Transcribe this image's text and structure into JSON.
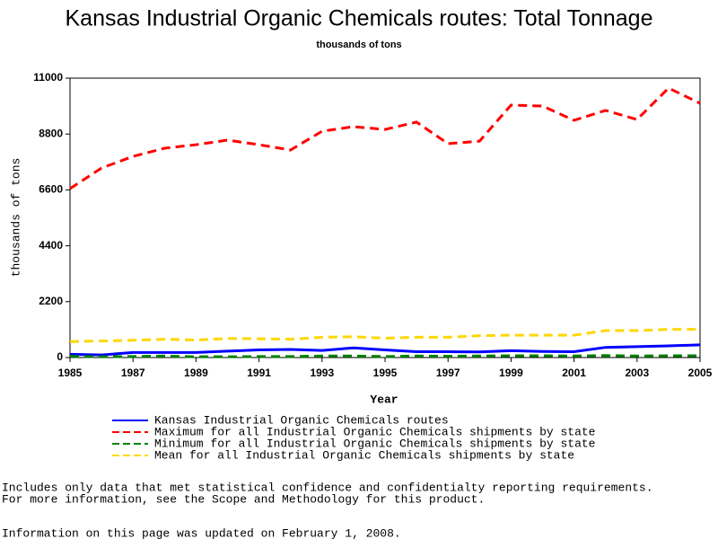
{
  "chart_data": {
    "type": "line",
    "title": "Kansas Industrial Organic Chemicals routes: Total Tonnage",
    "subtitle": "thousands of tons",
    "y_label": "thousands of tons",
    "x_label": "Year",
    "x": [
      1985,
      1986,
      1987,
      1988,
      1989,
      1990,
      1991,
      1992,
      1993,
      1994,
      1995,
      1996,
      1997,
      1998,
      1999,
      2000,
      2001,
      2002,
      2003,
      2004,
      2005
    ],
    "xlim": [
      1985,
      2005
    ],
    "xticks": [
      1985,
      1987,
      1989,
      1991,
      1993,
      1995,
      1997,
      1999,
      2001,
      2003,
      2005
    ],
    "ylim": [
      0,
      11000
    ],
    "yticks": [
      0,
      2200,
      4400,
      6600,
      8800,
      11000
    ],
    "series": [
      {
        "name": "Kansas Industrial Organic Chemicals routes",
        "color": "#0000ff",
        "dashed": false,
        "values": [
          130,
          100,
          200,
          200,
          200,
          250,
          300,
          320,
          280,
          380,
          300,
          230,
          230,
          220,
          270,
          240,
          230,
          400,
          430,
          460,
          500
        ]
      },
      {
        "name": "Maximum for all Industrial Organic Chemicals shipments by state",
        "color": "#ff0000",
        "dashed": true,
        "values": [
          6650,
          7460,
          7920,
          8240,
          8380,
          8560,
          8380,
          8170,
          8910,
          9090,
          8980,
          9270,
          8420,
          8520,
          9940,
          9900,
          9340,
          9730,
          9370,
          10610,
          10010
        ]
      },
      {
        "name": "Minimum for all Industrial Organic Chemicals shipments by state",
        "color": "#008000",
        "dashed": true,
        "values": [
          50,
          30,
          40,
          60,
          30,
          30,
          40,
          40,
          60,
          60,
          40,
          60,
          50,
          60,
          70,
          70,
          60,
          80,
          60,
          70,
          70
        ]
      },
      {
        "name": "Mean for all Industrial Organic Chemicals shipments by state",
        "color": "#ffd700",
        "dashed": true,
        "values": [
          630,
          650,
          680,
          720,
          690,
          750,
          740,
          720,
          800,
          820,
          760,
          800,
          800,
          860,
          880,
          880,
          880,
          1060,
          1060,
          1110,
          1110
        ]
      }
    ]
  },
  "notes": [
    "Includes only data that met statistical confidence and confidentialty reporting requirements.",
    "For more information, see the Scope and Methodology for this product.",
    "Information on this page was updated on February 1, 2008."
  ]
}
